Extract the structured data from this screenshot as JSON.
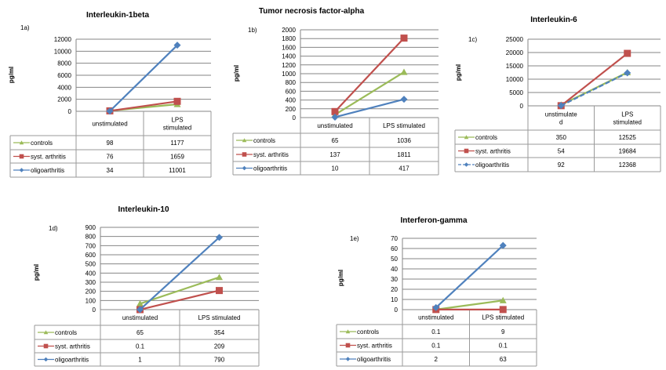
{
  "series_style": {
    "controls": {
      "color": "#9bbb59",
      "marker": "triangle"
    },
    "syst_arthritis": {
      "color": "#c0504d",
      "marker": "square"
    },
    "oligoarthritis": {
      "color": "#4f81bd",
      "marker": "diamond"
    }
  },
  "chart_data": [
    {
      "id": "1a",
      "type": "line",
      "panel_label": "1a)",
      "title": "Interleukin-1beta",
      "ylabel": "pg/ml",
      "xlabel": "",
      "categories": [
        "unstimulated",
        "LPS stimulated"
      ],
      "category_display": [
        [
          "unstimulated"
        ],
        [
          "LPS",
          "stimulated"
        ]
      ],
      "ylim": [
        0,
        12000
      ],
      "yticks": [
        0,
        2000,
        4000,
        6000,
        8000,
        10000,
        12000
      ],
      "grid": true,
      "legend": "data-table",
      "series": [
        {
          "name": "controls",
          "key": "controls",
          "values": [
            98,
            1177
          ],
          "labels": [
            "98",
            "1177"
          ]
        },
        {
          "name": "syst. arthritis",
          "key": "syst_arthritis",
          "values": [
            76,
            1659
          ],
          "labels": [
            "76",
            "1659"
          ]
        },
        {
          "name": "oligoarthritis",
          "key": "oligoarthritis",
          "values": [
            34,
            11001
          ],
          "labels": [
            "34",
            "11001"
          ]
        }
      ]
    },
    {
      "id": "1b",
      "type": "line",
      "panel_label": "1b)",
      "title": "Tumor necrosis factor-alpha",
      "ylabel": "pg/ml",
      "xlabel": "",
      "categories": [
        "unstimulated",
        "LPS stimulated"
      ],
      "category_display": [
        [
          "unstimulated"
        ],
        [
          "LPS stimulated"
        ]
      ],
      "ylim": [
        0,
        2000
      ],
      "yticks": [
        0,
        200,
        400,
        600,
        800,
        1000,
        1200,
        1400,
        1600,
        1800,
        2000
      ],
      "grid": true,
      "legend": "data-table",
      "series": [
        {
          "name": "controls",
          "key": "controls",
          "values": [
            65,
            1036
          ],
          "labels": [
            "65",
            "1036"
          ]
        },
        {
          "name": "syst. arthritis",
          "key": "syst_arthritis",
          "values": [
            137,
            1811
          ],
          "labels": [
            "137",
            "1811"
          ]
        },
        {
          "name": "oligoarthritis",
          "key": "oligoarthritis",
          "values": [
            10,
            417
          ],
          "labels": [
            "10",
            "417"
          ]
        }
      ]
    },
    {
      "id": "1c",
      "type": "line",
      "panel_label": "1c)",
      "title": "Interleukin-6",
      "ylabel": "pg/ml",
      "xlabel": "",
      "categories": [
        "unstimulated",
        "LPS stimulated"
      ],
      "category_display": [
        [
          "unstimulate",
          "d"
        ],
        [
          "LPS",
          "stimulated"
        ]
      ],
      "ylim": [
        0,
        25000
      ],
      "yticks": [
        0,
        5000,
        10000,
        15000,
        20000,
        25000
      ],
      "grid": true,
      "legend": "data-table",
      "series": [
        {
          "name": "controls",
          "key": "controls",
          "values": [
            350,
            12525
          ],
          "labels": [
            "350",
            "12525"
          ]
        },
        {
          "name": "syst. arthritis",
          "key": "syst_arthritis",
          "values": [
            54,
            19684
          ],
          "labels": [
            "54",
            "19684"
          ]
        },
        {
          "name": "oligoarthritis",
          "key": "oligoarthritis",
          "values": [
            92,
            12368
          ],
          "labels": [
            "92",
            "12368"
          ],
          "dashed": true
        }
      ]
    },
    {
      "id": "1d",
      "type": "line",
      "panel_label": "1d)",
      "title": "Interleukin-10",
      "ylabel": "pg/ml",
      "xlabel": "",
      "categories": [
        "unstimulated",
        "LPS stimulated"
      ],
      "category_display": [
        [
          "unstimulated"
        ],
        [
          "LPS stimulated"
        ]
      ],
      "ylim": [
        0,
        900
      ],
      "yticks": [
        0,
        100,
        200,
        300,
        400,
        500,
        600,
        700,
        800,
        900
      ],
      "grid": true,
      "legend": "data-table",
      "series": [
        {
          "name": "controls",
          "key": "controls",
          "values": [
            65,
            354
          ],
          "labels": [
            "65",
            "354"
          ]
        },
        {
          "name": "syst. arthritis",
          "key": "syst_arthritis",
          "values": [
            0.1,
            209
          ],
          "labels": [
            "0.1",
            "209"
          ]
        },
        {
          "name": "oligoarthritis",
          "key": "oligoarthritis",
          "values": [
            1,
            790
          ],
          "labels": [
            "1",
            "790"
          ]
        }
      ]
    },
    {
      "id": "1e",
      "type": "line",
      "panel_label": "1e)",
      "title": "Interferon-gamma",
      "ylabel": "pg/ml",
      "xlabel": "",
      "categories": [
        "unstimulated",
        "LPS stimulated"
      ],
      "category_display": [
        [
          "unstimulated"
        ],
        [
          "LPS stimulated"
        ]
      ],
      "ylim": [
        0,
        70
      ],
      "yticks": [
        0,
        10,
        20,
        30,
        40,
        50,
        60,
        70
      ],
      "grid": true,
      "legend": "data-table",
      "series": [
        {
          "name": "controls",
          "key": "controls",
          "values": [
            0.1,
            9
          ],
          "labels": [
            "0.1",
            "9"
          ]
        },
        {
          "name": "syst. arthritis",
          "key": "syst_arthritis",
          "values": [
            0.1,
            0.1
          ],
          "labels": [
            "0.1",
            "0.1"
          ]
        },
        {
          "name": "oligoarthritis",
          "key": "oligoarthritis",
          "values": [
            2,
            63
          ],
          "labels": [
            "2",
            "63"
          ]
        }
      ]
    }
  ]
}
